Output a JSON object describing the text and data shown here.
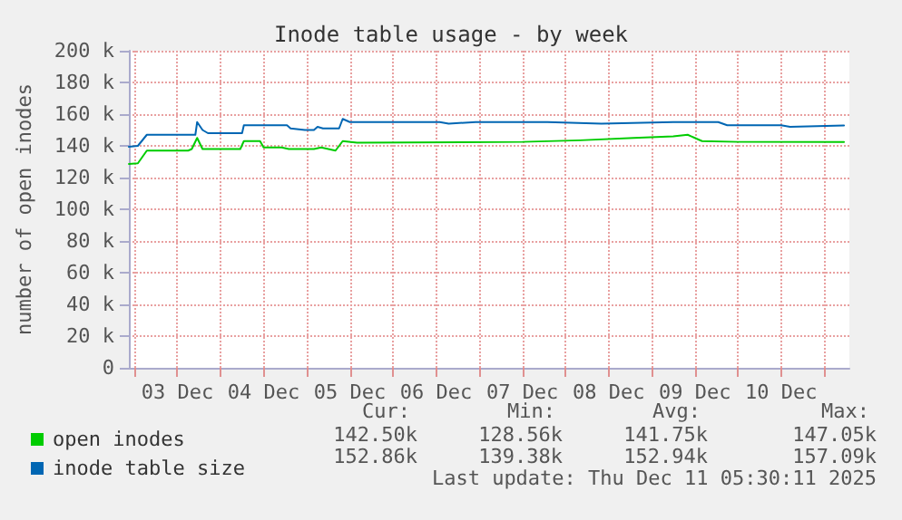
{
  "chart_data": {
    "type": "line",
    "title": "Inode table usage - by week",
    "ylabel": "number of open inodes",
    "series": [
      {
        "name": "open inodes",
        "color": "#00cc00",
        "x": [
          "2025-12-02T22:30",
          "2025-12-03T01:00",
          "2025-12-03T03:30",
          "2025-12-03T15:00",
          "2025-12-03T16:00",
          "2025-12-03T17:30",
          "2025-12-03T19:00",
          "2025-12-04T05:30",
          "2025-12-04T06:30",
          "2025-12-04T11:00",
          "2025-12-04T12:00",
          "2025-12-04T17:00",
          "2025-12-04T19:00",
          "2025-12-05T02:00",
          "2025-12-05T04:00",
          "2025-12-05T08:00",
          "2025-12-05T10:00",
          "2025-12-05T14:00",
          "2025-12-07T12:00",
          "2025-12-08T04:00",
          "2025-12-08T19:00",
          "2025-12-09T06:00",
          "2025-12-09T10:00",
          "2025-12-09T14:00",
          "2025-12-10T00:00",
          "2025-12-11T05:30"
        ],
        "values": [
          128600,
          129000,
          137000,
          137000,
          138000,
          145000,
          138000,
          138000,
          143000,
          143000,
          139000,
          139000,
          138000,
          138000,
          139000,
          137000,
          143000,
          142000,
          142500,
          143500,
          145000,
          146000,
          147000,
          143000,
          142500,
          142500
        ]
      },
      {
        "name": "inode table size",
        "color": "#0066b3",
        "x": [
          "2025-12-02T22:30",
          "2025-12-03T01:00",
          "2025-12-03T03:30",
          "2025-12-03T17:00",
          "2025-12-03T17:30",
          "2025-12-03T19:00",
          "2025-12-03T20:30",
          "2025-12-04T06:00",
          "2025-12-04T06:30",
          "2025-12-04T18:30",
          "2025-12-04T19:30",
          "2025-12-04T23:30",
          "2025-12-05T02:00",
          "2025-12-05T03:00",
          "2025-12-05T04:30",
          "2025-12-05T09:00",
          "2025-12-05T10:00",
          "2025-12-05T12:00",
          "2025-12-06T13:00",
          "2025-12-06T15:30",
          "2025-12-06T23:00",
          "2025-12-07T19:00",
          "2025-12-08T10:00",
          "2025-12-09T06:00",
          "2025-12-09T18:30",
          "2025-12-09T21:00",
          "2025-12-10T12:00",
          "2025-12-10T14:30",
          "2025-12-11T05:30"
        ],
        "values": [
          139400,
          140000,
          147000,
          147000,
          155000,
          150000,
          148000,
          148000,
          153000,
          153000,
          151000,
          150000,
          150000,
          152000,
          151000,
          151000,
          157000,
          155000,
          155000,
          154000,
          155000,
          155000,
          154000,
          155000,
          155000,
          153000,
          153000,
          152000,
          152900
        ]
      }
    ],
    "xlim": [
      "2025-12-02T22:30",
      "2025-12-11T07:00"
    ],
    "xticks": [
      {
        "value": "2025-12-03T00:00",
        "label": null
      },
      {
        "value": "2025-12-03T12:00",
        "label": "03 Dec"
      },
      {
        "value": "2025-12-04T00:00",
        "label": null
      },
      {
        "value": "2025-12-04T12:00",
        "label": "04 Dec"
      },
      {
        "value": "2025-12-05T00:00",
        "label": null
      },
      {
        "value": "2025-12-05T12:00",
        "label": "05 Dec"
      },
      {
        "value": "2025-12-06T00:00",
        "label": null
      },
      {
        "value": "2025-12-06T12:00",
        "label": "06 Dec"
      },
      {
        "value": "2025-12-07T00:00",
        "label": null
      },
      {
        "value": "2025-12-07T12:00",
        "label": "07 Dec"
      },
      {
        "value": "2025-12-08T00:00",
        "label": null
      },
      {
        "value": "2025-12-08T12:00",
        "label": "08 Dec"
      },
      {
        "value": "2025-12-09T00:00",
        "label": null
      },
      {
        "value": "2025-12-09T12:00",
        "label": "09 Dec"
      },
      {
        "value": "2025-12-10T00:00",
        "label": null
      },
      {
        "value": "2025-12-10T12:00",
        "label": "10 Dec"
      },
      {
        "value": "2025-12-11T00:00",
        "label": null
      }
    ],
    "ylim": [
      0,
      200000
    ],
    "yticks": [
      {
        "value": 0,
        "label": "0"
      },
      {
        "value": 20000,
        "label": "20 k"
      },
      {
        "value": 40000,
        "label": "40 k"
      },
      {
        "value": 60000,
        "label": "60 k"
      },
      {
        "value": 80000,
        "label": "80 k"
      },
      {
        "value": 100000,
        "label": "100 k"
      },
      {
        "value": 120000,
        "label": "120 k"
      },
      {
        "value": 140000,
        "label": "140 k"
      },
      {
        "value": 160000,
        "label": "160 k"
      },
      {
        "value": 180000,
        "label": "180 k"
      },
      {
        "value": 200000,
        "label": "200 k"
      }
    ],
    "grid": true,
    "legend": "bottom left",
    "marker": "none",
    "line_style": "solid",
    "annotations": [
      "Cur:",
      "Min:",
      "Avg:",
      "Max:",
      "142.50k",
      "128.56k",
      "141.75k",
      "147.05k",
      "152.86k",
      "139.38k",
      "152.94k",
      "157.09k",
      "Last update: Thu Dec 11 05:30:11 2025"
    ]
  }
}
